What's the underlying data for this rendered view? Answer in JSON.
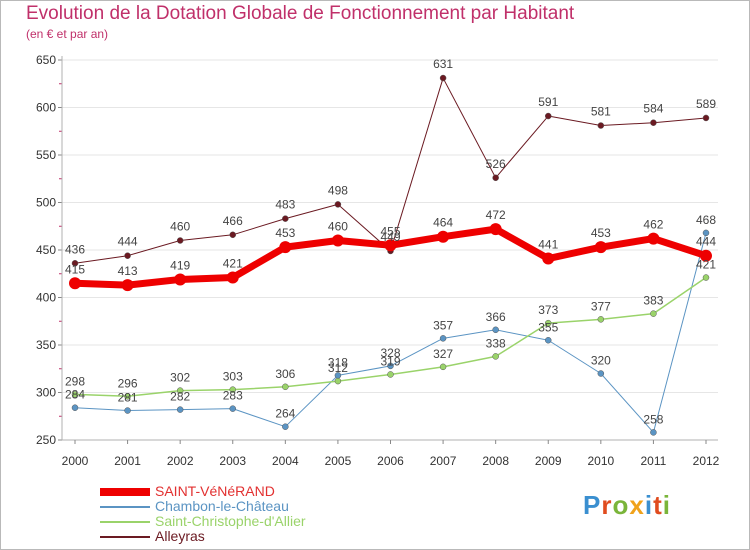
{
  "title": "Evolution de la Dotation Globale de Fonctionnement par Habitant",
  "subtitle": "(en € et par an)",
  "logo": "Proxiti",
  "colors": {
    "text": "#c0306a",
    "axis": "#b0b0b0",
    "grid": "#e6e6e6"
  },
  "chart_data": {
    "type": "line",
    "x": [
      "2000",
      "2001",
      "2002",
      "2003",
      "2004",
      "2005",
      "2006",
      "2007",
      "2008",
      "2009",
      "2010",
      "2011",
      "2012"
    ],
    "ylim": [
      250,
      650
    ],
    "yticks": [
      250,
      300,
      350,
      400,
      450,
      500,
      550,
      600,
      650
    ],
    "grid": true,
    "legend_position": "bottom-left",
    "series": [
      {
        "name": "Alleyras",
        "color": "#6b1a22",
        "width": 1,
        "values": [
          436,
          444,
          460,
          466,
          483,
          498,
          449,
          631,
          526,
          591,
          581,
          584,
          589
        ],
        "labels": [
          "436",
          "444",
          "460",
          "466",
          "483",
          "498",
          "449",
          "631",
          "526",
          "591",
          "581",
          "584",
          "589"
        ]
      },
      {
        "name": "Chambon-le-Château",
        "color": "#5b94c3",
        "width": 1,
        "values": [
          284,
          281,
          282,
          283,
          264,
          318,
          328,
          357,
          366,
          355,
          320,
          258,
          468
        ],
        "labels": [
          "284",
          "281",
          "282",
          "283",
          "264",
          "318",
          "328",
          "357",
          "366",
          "355",
          "320",
          "258",
          "468"
        ]
      },
      {
        "name": "Saint-Christophe-d'Allier",
        "color": "#9ad36a",
        "width": 1.5,
        "values": [
          298,
          296,
          302,
          303,
          306,
          312,
          319,
          327,
          338,
          373,
          377,
          383,
          421
        ],
        "labels": [
          "298",
          "296",
          "302",
          "303",
          "306",
          "312",
          "319",
          "327",
          "338",
          "373",
          "377",
          "383",
          "421"
        ]
      },
      {
        "name": "SAINT-VéNéRAND",
        "color": "#ee0000",
        "width": 7,
        "values": [
          415,
          413,
          419,
          421,
          453,
          460,
          455,
          464,
          472,
          441,
          453,
          462,
          444
        ],
        "labels": [
          "415",
          "413",
          "419",
          "421",
          "453",
          "460",
          "455",
          "464",
          "472",
          "441",
          "453",
          "462",
          "444"
        ]
      }
    ],
    "legend": [
      "SAINT-VéNéRAND",
      "Chambon-le-Château",
      "Saint-Christophe-d'Allier",
      "Alleyras"
    ]
  }
}
